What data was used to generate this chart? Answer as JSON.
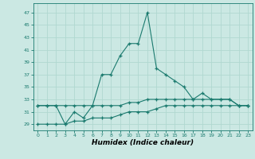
{
  "title": "",
  "xlabel": "Humidex (Indice chaleur)",
  "ylabel": "",
  "background_color": "#cbe8e3",
  "line_color": "#1a7a6e",
  "grid_color": "#b0d8d0",
  "xlim": [
    -0.5,
    23.5
  ],
  "ylim": [
    28,
    48.5
  ],
  "yticks": [
    29,
    31,
    33,
    35,
    37,
    39,
    41,
    43,
    45,
    47
  ],
  "xticks": [
    0,
    1,
    2,
    3,
    4,
    5,
    6,
    7,
    8,
    9,
    10,
    11,
    12,
    13,
    14,
    15,
    16,
    17,
    18,
    19,
    20,
    21,
    22,
    23
  ],
  "series1_x": [
    0,
    1,
    2,
    3,
    4,
    5,
    6,
    7,
    8,
    9,
    10,
    11,
    12,
    13,
    14,
    15,
    16,
    17,
    18,
    19,
    20,
    21,
    22,
    23
  ],
  "series1_y": [
    32,
    32,
    32,
    29,
    31,
    30,
    32,
    37,
    37,
    40,
    42,
    42,
    47,
    38,
    37,
    36,
    35,
    33,
    34,
    33,
    33,
    33,
    32,
    32
  ],
  "series2_x": [
    0,
    1,
    2,
    3,
    4,
    5,
    6,
    7,
    8,
    9,
    10,
    11,
    12,
    13,
    14,
    15,
    16,
    17,
    18,
    19,
    20,
    21,
    22,
    23
  ],
  "series2_y": [
    32,
    32,
    32,
    32,
    32,
    32,
    32,
    32,
    32,
    32,
    32.5,
    32.5,
    33,
    33,
    33,
    33,
    33,
    33,
    33,
    33,
    33,
    33,
    32,
    32
  ],
  "series3_x": [
    0,
    1,
    2,
    3,
    4,
    5,
    6,
    7,
    8,
    9,
    10,
    11,
    12,
    13,
    14,
    15,
    16,
    17,
    18,
    19,
    20,
    21,
    22,
    23
  ],
  "series3_y": [
    29,
    29,
    29,
    29,
    29.5,
    29.5,
    30,
    30,
    30,
    30.5,
    31,
    31,
    31,
    31.5,
    32,
    32,
    32,
    32,
    32,
    32,
    32,
    32,
    32,
    32
  ]
}
